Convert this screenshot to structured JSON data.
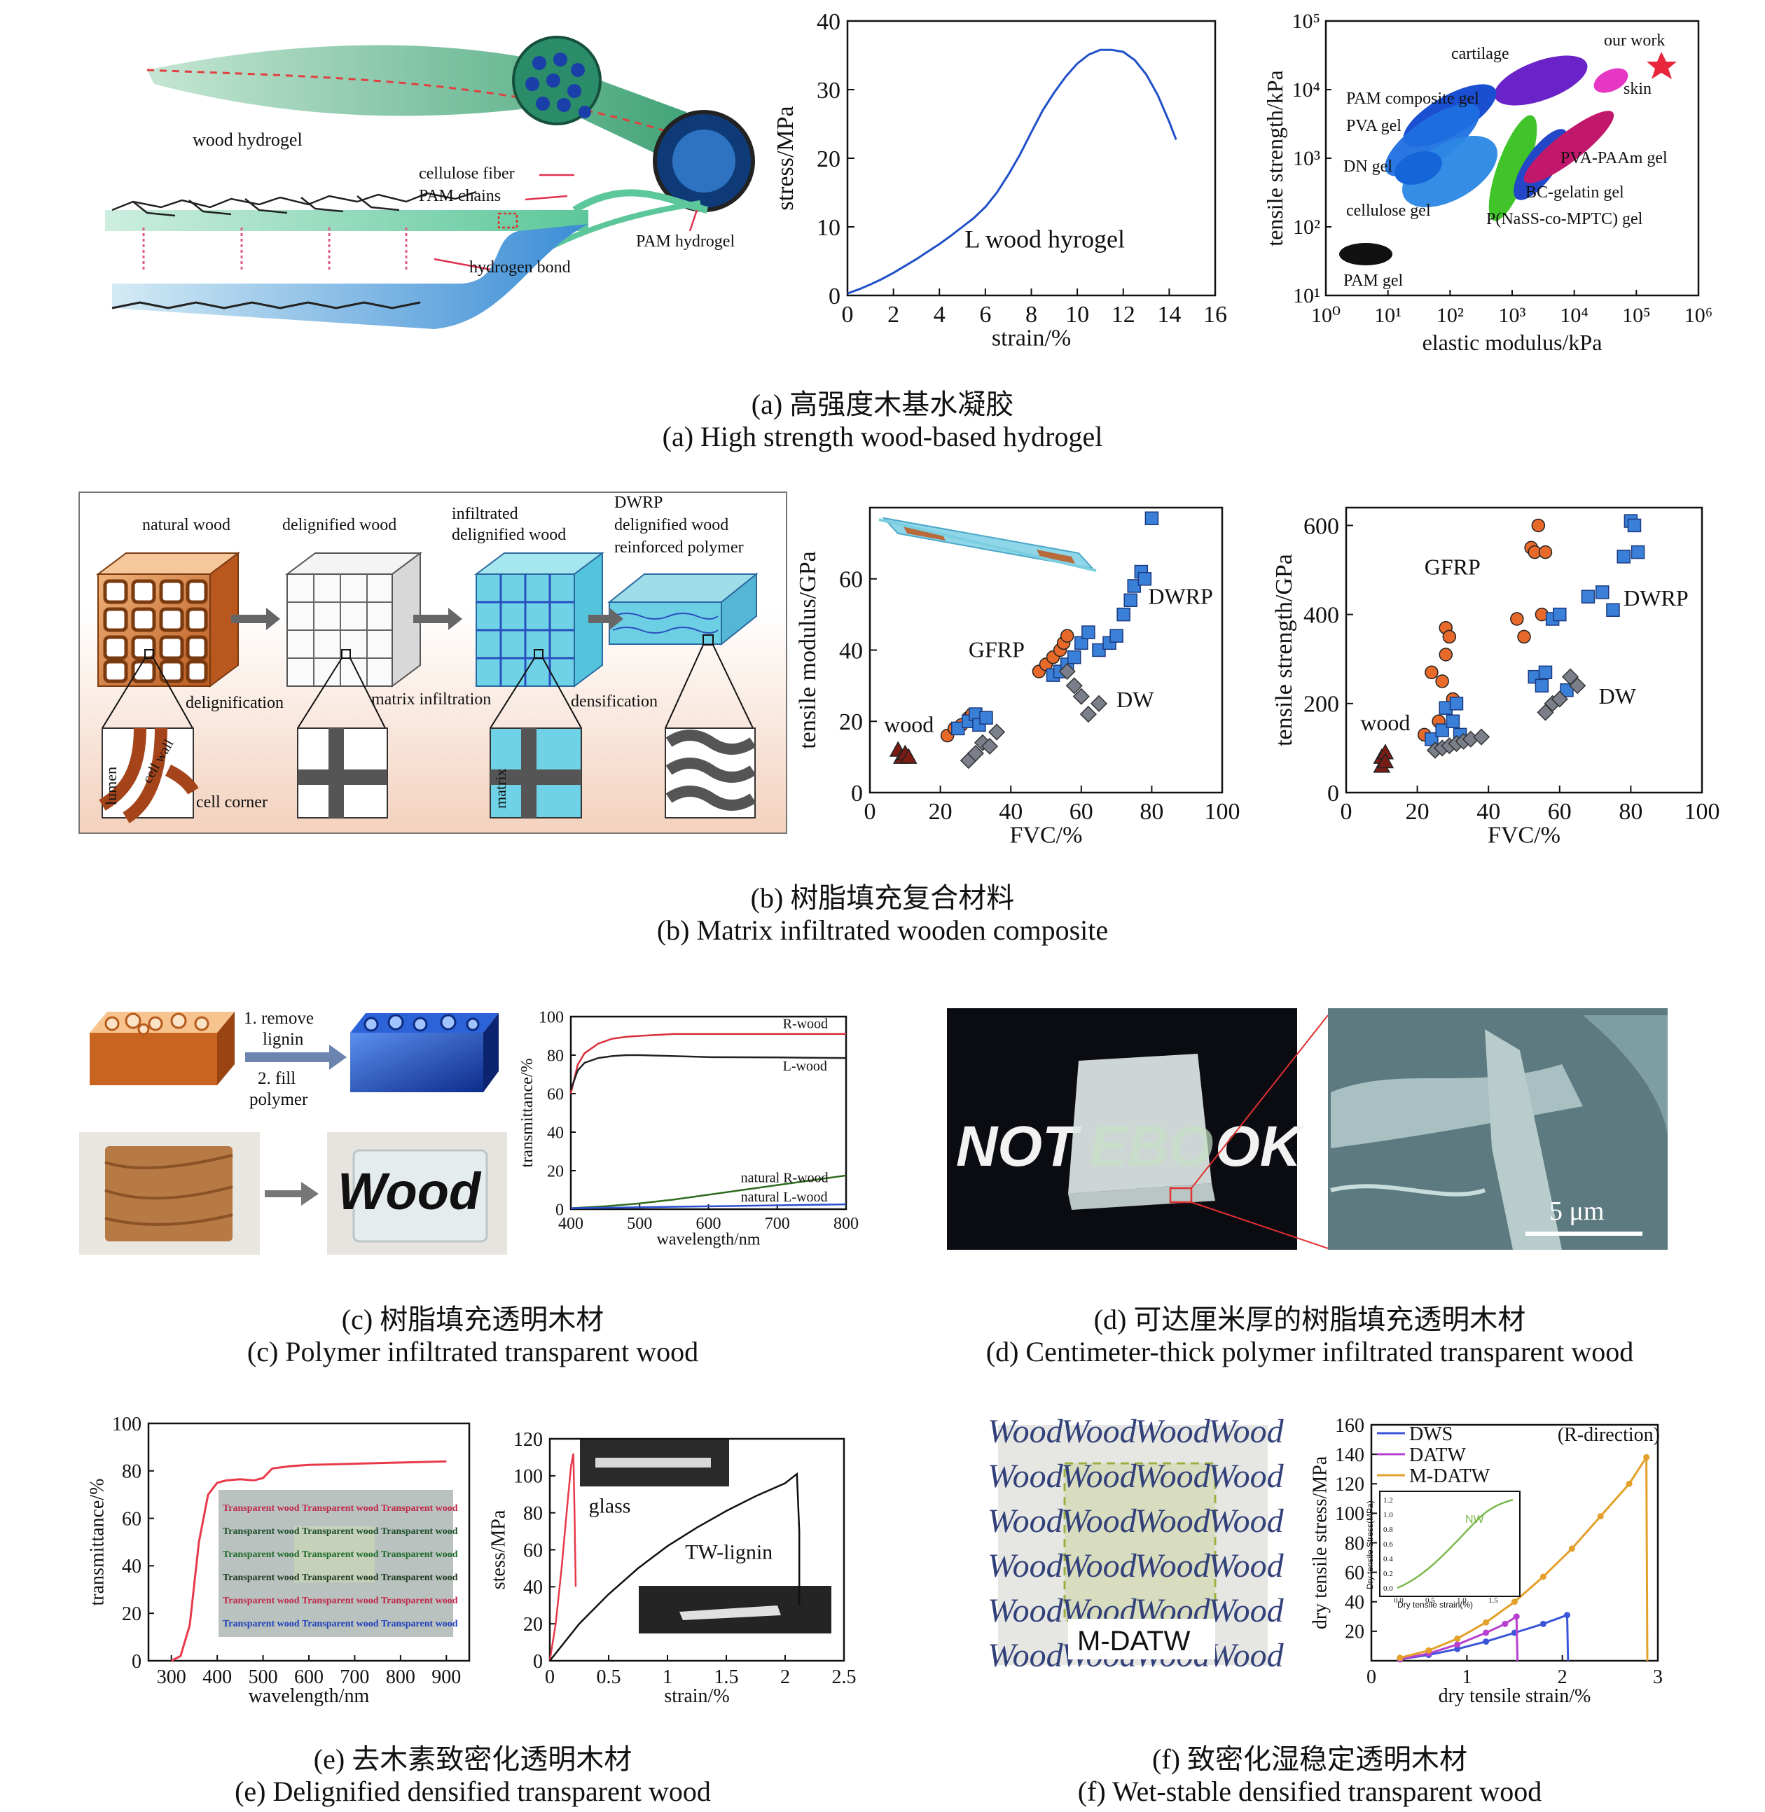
{
  "captions": {
    "a_cn": "(a) 高强度木基水凝胶",
    "a_en": "(a) High strength wood-based hydrogel",
    "b_cn": "(b) 树脂填充复合材料",
    "b_en": "(b) Matrix infiltrated wooden composite",
    "c_cn": "(c) 树脂填充透明木材",
    "c_en": "(c) Polymer infiltrated transparent wood",
    "d_cn": "(d) 可达厘米厚的树脂填充透明木材",
    "d_en": "(d) Centimeter-thick polymer infiltrated transparent wood",
    "e_cn": "(e) 去木素致密化透明木材",
    "e_en": "(e) Delignified densified transparent wood",
    "f_cn": "(f) 致密化湿稳定透明木材",
    "f_en": "(f) Wet-stable densified transparent wood"
  },
  "schematic_a": {
    "wood_hydrogel": "wood hydrogel",
    "cellulose_fiber": "cellulose fiber",
    "pam_chains": "PAM chains",
    "pam_hydrogel": "PAM hydrogel",
    "hydrogen_bond": "hydrogen bond"
  },
  "schematic_b": {
    "natural_wood": "natural wood",
    "delignified_wood": "delignified wood",
    "infiltrated_1": "infiltrated",
    "infiltrated_2": "delignified wood",
    "dwrp_1": "DWRP",
    "dwrp_2": "delignified wood",
    "dwrp_3": "reinforced polymer",
    "delignification": "delignification",
    "matrix_infiltration": "matrix infiltration",
    "densification": "densification",
    "lumen": "lumen",
    "cell_wall": "cell wall",
    "cell_corner": "cell corner",
    "matrix": "matrix"
  },
  "schematic_c": {
    "step1a": "1. remove",
    "step1b": "lignin",
    "step2a": "2. fill",
    "step2b": "polymer",
    "wood_word": "Wood"
  },
  "photo_d": {
    "notebook_left": "NOT",
    "notebook_right": "OK",
    "notebook_mid": "EBO",
    "scale": "5 μm"
  },
  "photo_e": {
    "inset_text": "Transparent wood",
    "glass_label": "glass",
    "tw_label": "TW-lignin"
  },
  "photo_f": {
    "word": "Wood",
    "label": "M-DATW"
  },
  "chart_data": [
    {
      "id": "a1",
      "type": "line",
      "xlabel": "strain/%",
      "ylabel": "stress/MPa",
      "xlim": [
        0,
        16
      ],
      "ylim": [
        0,
        40
      ],
      "xticks": [
        0,
        2,
        4,
        6,
        8,
        10,
        12,
        14,
        16
      ],
      "yticks": [
        0,
        10,
        20,
        30,
        40
      ],
      "annotation": "L wood hyrogel",
      "series": [
        {
          "color": "#2050c8",
          "x": [
            0,
            0.5,
            1,
            1.5,
            2,
            2.5,
            3,
            3.5,
            4,
            4.5,
            5,
            5.5,
            6,
            6.5,
            7,
            7.5,
            8,
            8.5,
            9,
            9.5,
            10,
            10.5,
            11,
            11.5,
            12,
            12.5,
            13,
            13.5,
            14,
            14.3
          ],
          "y": [
            0.3,
            0.9,
            1.6,
            2.4,
            3.3,
            4.3,
            5.3,
            6.4,
            7.5,
            8.7,
            10.0,
            11.3,
            12.9,
            15.0,
            17.6,
            20.5,
            23.8,
            27.0,
            29.6,
            31.9,
            33.8,
            35.1,
            35.8,
            35.8,
            35.5,
            34.3,
            32.2,
            29.2,
            25.3,
            22.7
          ]
        }
      ]
    },
    {
      "id": "a2",
      "type": "scatter",
      "xlabel": "elastic modulus/kPa",
      "ylabel": "tensile strength/kPa",
      "xscale": "log",
      "yscale": "log",
      "xlim": [
        1,
        1000000
      ],
      "ylim": [
        10,
        100000
      ],
      "xticks": [
        "10⁰",
        "10¹",
        "10²",
        "10³",
        "10⁴",
        "10⁵",
        "10⁶"
      ],
      "yticks": [
        "10¹",
        "10²",
        "10³",
        "10⁴",
        "10⁵"
      ],
      "regions": [
        {
          "name": "cartilage",
          "color": "#6a23c8"
        },
        {
          "name": "skin",
          "color": "#e536c4"
        },
        {
          "name": "PAM composite gel",
          "color": "#1b4fd1"
        },
        {
          "name": "PVA gel",
          "color": "#1f6fe0"
        },
        {
          "name": "DN gel",
          "color": "#1565d8"
        },
        {
          "name": "cellulose gel",
          "color": "#2b87e4"
        },
        {
          "name": "PVA-PAAm gel",
          "color": "#c2186b"
        },
        {
          "name": "BC-gelatin gel",
          "color": "#2247c9"
        },
        {
          "name": "P(NaSS-co-MPTC) gel",
          "color": "#40c42a"
        },
        {
          "name": "PAM gel",
          "color": "#111111"
        }
      ],
      "points": [
        {
          "name": "our work",
          "x": 200000,
          "y": 25000,
          "color": "#e8263c"
        }
      ]
    },
    {
      "id": "b1",
      "type": "scatter",
      "xlabel": "FVC/%",
      "ylabel": "tensile modulus/GPa",
      "xlim": [
        0,
        100
      ],
      "ylim": [
        0,
        80
      ],
      "xticks": [
        0,
        20,
        40,
        60,
        80,
        100
      ],
      "yticks": [
        0,
        20,
        40,
        60
      ],
      "series": [
        {
          "name": "wood",
          "marker": "triangle",
          "color": "#7a1c14",
          "x": [
            8,
            9,
            10,
            11
          ],
          "y": [
            12,
            10,
            11,
            10
          ]
        },
        {
          "name": "GFRP",
          "marker": "circle",
          "color": "#e86a2a",
          "x": [
            22,
            24,
            26,
            28,
            29,
            48,
            50,
            52,
            54,
            55,
            56
          ],
          "y": [
            16,
            18,
            19,
            21,
            22,
            34,
            36,
            38,
            40,
            42,
            44
          ]
        },
        {
          "name": "DWRP",
          "marker": "square",
          "color": "#3a7fd8",
          "x": [
            25,
            28,
            30,
            31,
            33,
            52,
            54,
            56,
            58,
            60,
            62,
            65,
            68,
            70,
            72,
            74,
            75,
            77,
            78,
            80
          ],
          "y": [
            18,
            20,
            22,
            19,
            21,
            33,
            34,
            36,
            38,
            42,
            45,
            40,
            42,
            44,
            50,
            54,
            58,
            62,
            60,
            77
          ]
        },
        {
          "name": "DW",
          "marker": "diamond",
          "color": "#7a7f8a",
          "x": [
            28,
            30,
            32,
            34,
            36,
            56,
            58,
            60,
            62,
            65
          ],
          "y": [
            9,
            11,
            14,
            13,
            17,
            34,
            30,
            27,
            22,
            25
          ]
        }
      ],
      "labels": [
        "wood",
        "GFRP",
        "DWRP",
        "DW"
      ]
    },
    {
      "id": "b2",
      "type": "scatter",
      "xlabel": "FVC/%",
      "ylabel": "tensile strength/GPa",
      "xlim": [
        0,
        100
      ],
      "ylim": [
        0,
        640
      ],
      "xticks": [
        0,
        20,
        40,
        60,
        80,
        100
      ],
      "yticks": [
        0,
        200,
        400,
        600
      ],
      "series": [
        {
          "name": "wood",
          "marker": "triangle",
          "color": "#7a1c14",
          "x": [
            10,
            10,
            11,
            11
          ],
          "y": [
            60,
            80,
            90,
            70
          ]
        },
        {
          "name": "GFRP",
          "marker": "circle",
          "color": "#e86a2a",
          "x": [
            22,
            24,
            26,
            27,
            28,
            28,
            29,
            30,
            48,
            50,
            52,
            53,
            54,
            55,
            56
          ],
          "y": [
            130,
            270,
            160,
            250,
            310,
            370,
            350,
            210,
            390,
            350,
            550,
            540,
            600,
            400,
            540
          ]
        },
        {
          "name": "DWRP",
          "marker": "square",
          "color": "#3a7fd8",
          "x": [
            24,
            27,
            28,
            30,
            31,
            32,
            53,
            55,
            56,
            58,
            60,
            62,
            68,
            72,
            75,
            78,
            80,
            81,
            82
          ],
          "y": [
            120,
            140,
            190,
            160,
            200,
            130,
            260,
            240,
            270,
            390,
            400,
            230,
            440,
            450,
            410,
            530,
            610,
            600,
            540
          ]
        },
        {
          "name": "DW",
          "marker": "diamond",
          "color": "#7a7f8a",
          "x": [
            25,
            27,
            29,
            31,
            33,
            35,
            38,
            56,
            58,
            60,
            63,
            65
          ],
          "y": [
            95,
            100,
            105,
            110,
            115,
            120,
            125,
            180,
            200,
            210,
            260,
            240
          ]
        }
      ],
      "labels": [
        "wood",
        "GFRP",
        "DWRP",
        "DW"
      ]
    },
    {
      "id": "c1",
      "type": "line",
      "xlabel": "wavelength/nm",
      "ylabel": "transmittance/%",
      "xlim": [
        400,
        800
      ],
      "ylim": [
        0,
        100
      ],
      "xticks": [
        400,
        500,
        600,
        700,
        800
      ],
      "yticks": [
        0,
        20,
        40,
        60,
        80,
        100
      ],
      "series": [
        {
          "name": "R-wood",
          "color": "#d8303a",
          "x": [
            400,
            410,
            420,
            440,
            460,
            480,
            500,
            550,
            600,
            700,
            800
          ],
          "y": [
            60,
            75,
            81,
            86,
            88.5,
            89.5,
            90,
            91,
            91,
            91,
            91
          ]
        },
        {
          "name": "L-wood",
          "color": "#222222",
          "x": [
            400,
            410,
            420,
            440,
            460,
            480,
            500,
            550,
            600,
            700,
            800
          ],
          "y": [
            62,
            72,
            76,
            78.5,
            79.5,
            80,
            80,
            79.5,
            79,
            78.8,
            78.5
          ]
        },
        {
          "name": "natural R-wood",
          "color": "#2f6a1f",
          "x": [
            400,
            450,
            500,
            550,
            600,
            650,
            700,
            750,
            800
          ],
          "y": [
            0.5,
            1.5,
            3,
            5,
            7.5,
            10,
            12.5,
            15,
            17.5
          ]
        },
        {
          "name": "natural L-wood",
          "color": "#2a4fd0",
          "x": [
            400,
            500,
            600,
            700,
            800
          ],
          "y": [
            0.5,
            1,
            1.5,
            2,
            2.5
          ]
        }
      ]
    },
    {
      "id": "e1",
      "type": "line",
      "xlabel": "wavelength/nm",
      "ylabel": "transmittance/%",
      "xlim": [
        250,
        950
      ],
      "ylim": [
        0,
        100
      ],
      "xticks": [
        300,
        400,
        500,
        600,
        700,
        800,
        900
      ],
      "yticks": [
        0,
        20,
        40,
        60,
        80,
        100
      ],
      "series": [
        {
          "name": "transparent wood",
          "color": "#e8394a",
          "x": [
            300,
            320,
            340,
            360,
            380,
            400,
            420,
            450,
            480,
            500,
            520,
            560,
            600,
            700,
            800,
            900
          ],
          "y": [
            0,
            2,
            15,
            50,
            70,
            75,
            76,
            76.5,
            76,
            77,
            81,
            82,
            82.5,
            83,
            83.5,
            84
          ]
        }
      ]
    },
    {
      "id": "e2",
      "type": "line",
      "xlabel": "strain/%",
      "ylabel": "stess/MPa",
      "xlim": [
        0,
        2.5
      ],
      "ylim": [
        0,
        120
      ],
      "xticks": [
        0,
        0.5,
        1.0,
        1.5,
        2.0,
        2.5
      ],
      "yticks": [
        0,
        20,
        40,
        60,
        80,
        100,
        120
      ],
      "series": [
        {
          "name": "glass",
          "color": "#e8394a",
          "x": [
            0,
            0.05,
            0.1,
            0.15,
            0.18,
            0.2,
            0.21,
            0.22
          ],
          "y": [
            0,
            20,
            50,
            85,
            105,
            112,
            80,
            40
          ]
        },
        {
          "name": "TW-lignin",
          "color": "#111111",
          "x": [
            0,
            0.25,
            0.5,
            0.75,
            1.0,
            1.25,
            1.5,
            1.75,
            2.0,
            2.1,
            2.12,
            2.12
          ],
          "y": [
            0,
            20,
            36,
            50,
            62,
            72,
            81,
            89,
            96,
            101,
            70,
            30
          ]
        }
      ]
    },
    {
      "id": "f1",
      "type": "line",
      "xlabel": "dry tensile strain/%",
      "ylabel": "dry tensile stress/MPa",
      "xlim": [
        0,
        3
      ],
      "ylim": [
        0,
        160
      ],
      "xticks": [
        0,
        1,
        2,
        3
      ],
      "yticks": [
        20,
        40,
        60,
        80,
        100,
        120,
        140,
        160
      ],
      "annotation": "(R-direction)",
      "series": [
        {
          "name": "DWS",
          "color": "#3a55d8",
          "x": [
            0.3,
            0.6,
            0.9,
            1.2,
            1.5,
            1.8,
            2.05,
            2.06
          ],
          "y": [
            1,
            4,
            8,
            13,
            19,
            25,
            31,
            0
          ]
        },
        {
          "name": "DATW",
          "color": "#b840d0",
          "x": [
            0.3,
            0.6,
            0.9,
            1.2,
            1.4,
            1.52,
            1.53
          ],
          "y": [
            1,
            5,
            11,
            19,
            25,
            30,
            0
          ]
        },
        {
          "name": "M-DATW",
          "color": "#e3a02a",
          "x": [
            0.3,
            0.6,
            0.9,
            1.2,
            1.5,
            1.8,
            2.1,
            2.4,
            2.7,
            2.88,
            2.89
          ],
          "y": [
            2,
            7,
            15,
            26,
            40,
            57,
            76,
            98,
            120,
            138,
            0
          ]
        }
      ],
      "inset": {
        "xlabel": "Dry tensile strain(%)",
        "ylabel": "Dry tensile Stress(MPa)",
        "label": "NW",
        "xticks": [
          0.0,
          0.5,
          1.0,
          1.5
        ],
        "yticks": [
          0.0,
          0.2,
          0.4,
          0.6,
          0.8,
          1.0,
          1.2
        ]
      }
    }
  ]
}
